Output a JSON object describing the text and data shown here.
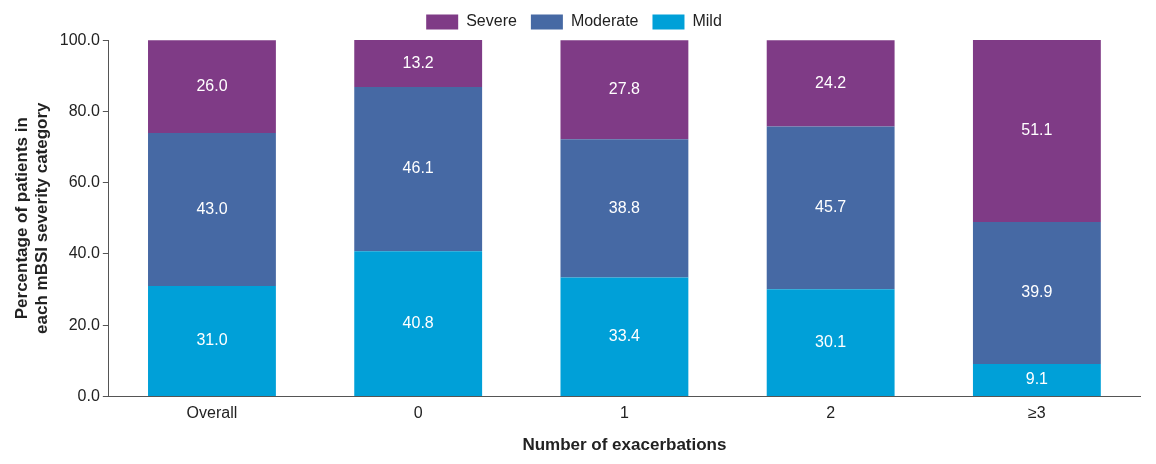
{
  "chart_data": {
    "type": "bar",
    "stacked": true,
    "xlabel": "Number of exacerbations",
    "ylabel": "Percentage of patients in\neach mBSI severity category",
    "categories": [
      "Overall",
      "0",
      "1",
      "2",
      "≥3"
    ],
    "series": [
      {
        "name": "Mild",
        "color": "#00a0d8",
        "values": [
          31.0,
          40.8,
          33.4,
          30.1,
          9.1
        ],
        "value_labels": [
          "31.0",
          "40.8",
          "33.4",
          "30.1",
          "9.1"
        ]
      },
      {
        "name": "Moderate",
        "color": "#4669a4",
        "values": [
          43.0,
          46.1,
          38.8,
          45.7,
          39.9
        ],
        "value_labels": [
          "43.0",
          "46.1",
          "38.8",
          "45.7",
          "39.9"
        ]
      },
      {
        "name": "Severe",
        "color": "#7f3b86",
        "values": [
          26.0,
          13.2,
          27.8,
          24.2,
          51.1
        ],
        "value_labels": [
          "26.0",
          "13.2",
          "27.8",
          "24.2",
          "51.1"
        ]
      }
    ],
    "ylim": [
      0,
      100.1
    ],
    "yticks": [
      {
        "value": 0,
        "label": "0.0"
      },
      {
        "value": 20,
        "label": "20.0"
      },
      {
        "value": 40,
        "label": "40.0"
      },
      {
        "value": 60,
        "label": "60.0"
      },
      {
        "value": 80,
        "label": "80.0"
      },
      {
        "value": 100,
        "label": "100.0"
      }
    ],
    "grid": false,
    "legend": "top"
  }
}
